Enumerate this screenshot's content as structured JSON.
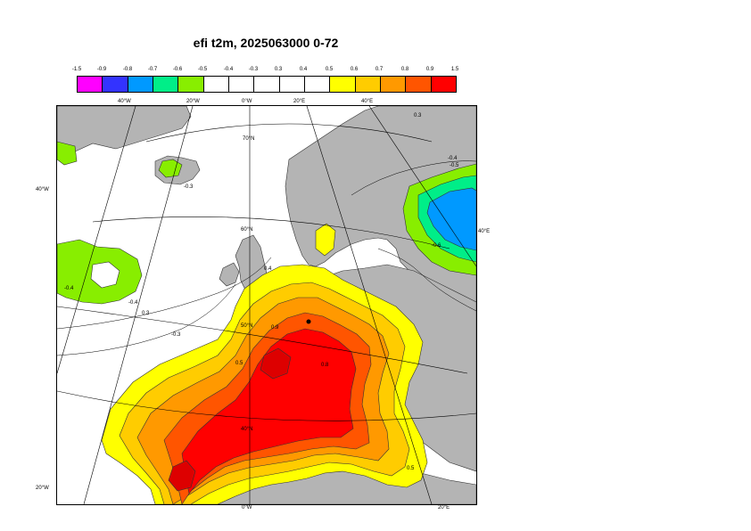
{
  "title": "efi t2m, 2025063000 0-72",
  "legend": {
    "labels": [
      "-1.5",
      "-0.9",
      "-0.8",
      "-0.7",
      "-0.6",
      "-0.5",
      "-0.4",
      "-0.3",
      "0.3",
      "0.4",
      "0.5",
      "0.6",
      "0.7",
      "0.8",
      "0.9",
      "1.5"
    ],
    "colors": [
      "#ff00ff",
      "#3333ff",
      "#0099ff",
      "#00ee88",
      "#88ee00",
      "#ffffff",
      "#ffffff",
      "#ffffff",
      "#ffffff",
      "#ffffff",
      "#ffff00",
      "#ffcc00",
      "#ff9900",
      "#ff5500",
      "#ff0000"
    ]
  },
  "map": {
    "colors": {
      "land": "#b4b4b4",
      "sea": "#ffffff",
      "green": "#88ee00",
      "teal": "#00ee88",
      "blue": "#0099ff",
      "yellow": "#ffff00",
      "gold": "#ffcc00",
      "orange": "#ff9900",
      "darkorange": "#ff5500",
      "red": "#ff0000",
      "deepred": "#dd0000"
    },
    "top_longitudes": [
      "40°W",
      "20°W",
      "0°W",
      "20°E",
      "40°E"
    ],
    "bottom_longitudes": [
      "0°W",
      "20°E"
    ],
    "left_latitudes": [
      "40°W",
      "20°W"
    ],
    "right_latitudes": [
      "40°E"
    ],
    "interior_latitudes": [
      "70°N",
      "60°N",
      "50°N",
      "40°N"
    ],
    "contour_labels": [
      "0.3",
      "-0.3",
      "-0.4",
      "-0.5",
      "-0.4",
      "0.3",
      "0.4",
      "-0.3",
      "-0.4",
      "0.5",
      "-0.6",
      "0.8",
      "0.9",
      "0.5"
    ]
  }
}
